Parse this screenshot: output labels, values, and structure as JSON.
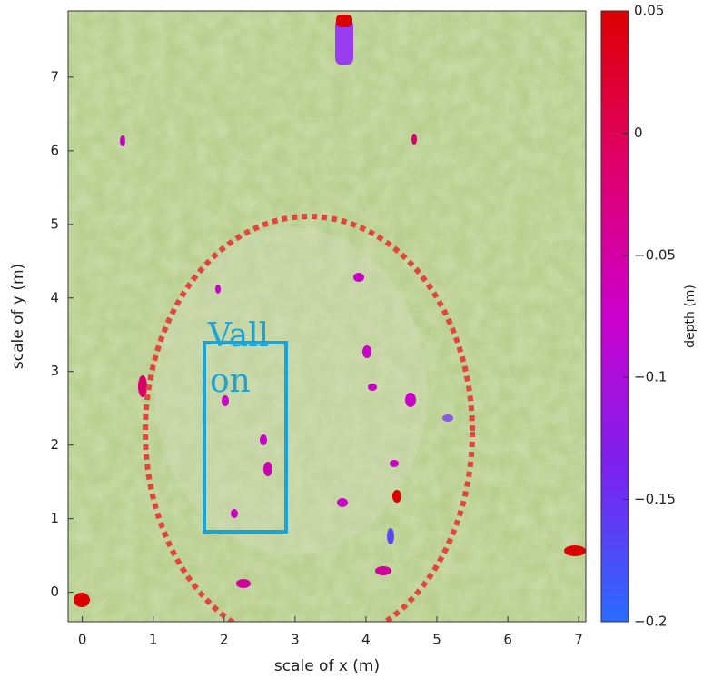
{
  "chart_data": {
    "type": "image",
    "xlabel": "scale of x (m)",
    "ylabel": "scale of y (m)",
    "xlim": [
      -0.2,
      7.1
    ],
    "ylim": [
      -0.4,
      7.9
    ],
    "xticks": [
      0,
      1,
      2,
      3,
      4,
      5,
      6,
      7
    ],
    "yticks": [
      0,
      1,
      2,
      3,
      4,
      5,
      6,
      7
    ],
    "annotations": [
      "Vall",
      "on"
    ],
    "colorbar": {
      "label": "depth (m)",
      "lim": [
        -0.2,
        0.05
      ],
      "ticks": [
        0.05,
        0,
        {
          "value": -0.05,
          "label": "−0.05"
        },
        {
          "value": -0.1,
          "label": "−0.1"
        },
        {
          "value": -0.15,
          "label": "−0.15"
        },
        {
          "value": -0.2,
          "label": "−0.2"
        }
      ],
      "colors": [
        "#2a6bff",
        "#7a22ee",
        "#cc00cc",
        "#e0006a",
        "#dd0000"
      ]
    }
  }
}
